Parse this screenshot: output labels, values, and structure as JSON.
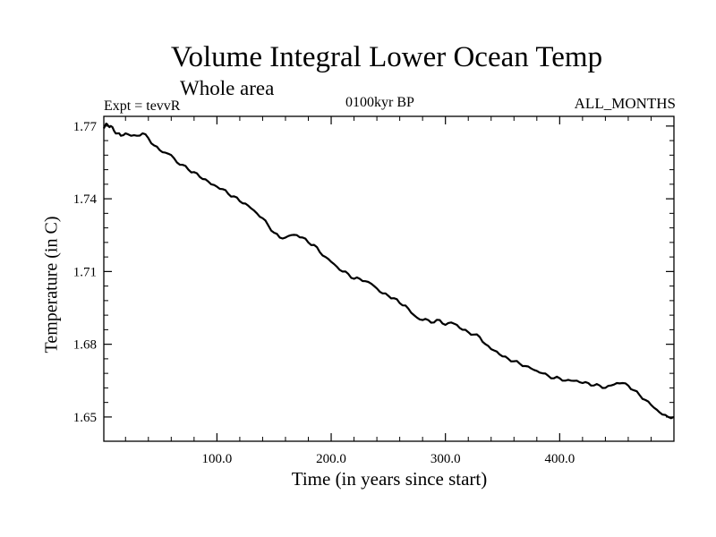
{
  "chart_data": {
    "type": "line",
    "title": "Volume Integral Lower Ocean Temp",
    "subtitle": "Whole area",
    "left_label": "Expt = tevvR",
    "center_label": "0100kyr BP",
    "right_label": "ALL_MONTHS",
    "xlabel": "Time (in years since start)",
    "ylabel": "Temperature (in C)",
    "xlim": [
      1,
      500
    ],
    "ylim": [
      1.64,
      1.774
    ],
    "x_ticks": [
      100,
      200,
      300,
      400
    ],
    "x_tick_labels": [
      "100.0",
      "200.0",
      "300.0",
      "400.0"
    ],
    "y_ticks": [
      1.65,
      1.68,
      1.71,
      1.74,
      1.77
    ],
    "y_tick_labels": [
      "1.65",
      "1.68",
      "1.71",
      "1.74",
      "1.77"
    ],
    "grid": false,
    "series": [
      {
        "x": [
          1,
          3,
          5,
          7,
          10,
          13,
          16,
          20,
          25,
          30,
          35,
          40,
          45,
          50,
          55,
          60,
          65,
          70,
          75,
          80,
          85,
          90,
          95,
          100,
          105,
          110,
          115,
          120,
          125,
          130,
          135,
          140,
          145,
          150,
          155,
          160,
          165,
          170,
          175,
          180,
          185,
          190,
          195,
          200,
          205,
          210,
          215,
          220,
          225,
          230,
          235,
          240,
          245,
          250,
          255,
          260,
          265,
          270,
          275,
          280,
          285,
          290,
          295,
          300,
          305,
          310,
          315,
          320,
          325,
          330,
          335,
          340,
          345,
          350,
          355,
          360,
          365,
          370,
          375,
          380,
          385,
          390,
          395,
          400,
          405,
          410,
          415,
          420,
          425,
          430,
          435,
          440,
          445,
          450,
          455,
          460,
          465,
          470,
          475,
          480,
          485,
          490,
          495,
          500
        ],
        "values": [
          1.769,
          1.771,
          1.77,
          1.77,
          1.768,
          1.767,
          1.766,
          1.767,
          1.766,
          1.766,
          1.767,
          1.765,
          1.762,
          1.76,
          1.759,
          1.758,
          1.755,
          1.754,
          1.752,
          1.751,
          1.749,
          1.748,
          1.746,
          1.745,
          1.744,
          1.742,
          1.741,
          1.739,
          1.738,
          1.736,
          1.734,
          1.732,
          1.729,
          1.726,
          1.724,
          1.724,
          1.725,
          1.725,
          1.724,
          1.722,
          1.721,
          1.718,
          1.716,
          1.714,
          1.712,
          1.71,
          1.709,
          1.707,
          1.707,
          1.706,
          1.705,
          1.703,
          1.701,
          1.7,
          1.699,
          1.697,
          1.696,
          1.693,
          1.691,
          1.69,
          1.69,
          1.689,
          1.69,
          1.688,
          1.689,
          1.688,
          1.686,
          1.685,
          1.684,
          1.683,
          1.68,
          1.678,
          1.677,
          1.675,
          1.674,
          1.673,
          1.672,
          1.671,
          1.67,
          1.669,
          1.668,
          1.667,
          1.666,
          1.666,
          1.665,
          1.665,
          1.665,
          1.664,
          1.664,
          1.663,
          1.663,
          1.662,
          1.663,
          1.664,
          1.664,
          1.663,
          1.661,
          1.659,
          1.657,
          1.655,
          1.653,
          1.651,
          1.65,
          1.65
        ]
      }
    ]
  }
}
